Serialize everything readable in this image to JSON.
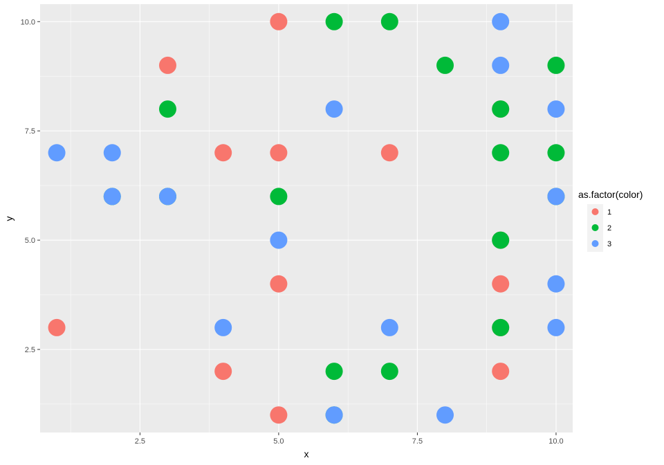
{
  "chart_data": {
    "type": "scatter",
    "xlabel": "x",
    "ylabel": "y",
    "xlim": [
      0.7,
      10.3
    ],
    "ylim": [
      0.6,
      10.4
    ],
    "x_major_ticks": [
      2.5,
      5.0,
      7.5,
      10.0
    ],
    "x_tick_labels": [
      "2.5",
      "5.0",
      "7.5",
      "10.0"
    ],
    "x_minor_ticks": [
      1.25,
      3.75,
      6.25,
      8.75
    ],
    "y_major_ticks": [
      2.5,
      5.0,
      7.5,
      10.0
    ],
    "y_tick_labels": [
      "2.5",
      "5.0",
      "7.5",
      "10.0"
    ],
    "y_minor_ticks": [
      1.25,
      3.75,
      6.25,
      8.75
    ],
    "grid": true,
    "colors": {
      "1": "#F8766D",
      "2": "#00BA38",
      "3": "#619CFF"
    },
    "panel_background": "#EBEBEB",
    "gridline_color": "#FFFFFF",
    "legend": {
      "title": "as.factor(color)",
      "placement": "right",
      "entries": [
        {
          "label": "1",
          "color": "#F8766D"
        },
        {
          "label": "2",
          "color": "#00BA38"
        },
        {
          "label": "3",
          "color": "#619CFF"
        }
      ]
    },
    "series": [
      {
        "name": "1",
        "color": "#F8766D",
        "points": [
          [
            1,
            3
          ],
          [
            3,
            9
          ],
          [
            4,
            2
          ],
          [
            4,
            7
          ],
          [
            5,
            1
          ],
          [
            5,
            4
          ],
          [
            5,
            7
          ],
          [
            5,
            10
          ],
          [
            7,
            7
          ],
          [
            9,
            2
          ],
          [
            9,
            3
          ],
          [
            9,
            4
          ],
          [
            9,
            5
          ],
          [
            9,
            8
          ]
        ]
      },
      {
        "name": "2",
        "color": "#00BA38",
        "points": [
          [
            2,
            6
          ],
          [
            3,
            6
          ],
          [
            3,
            8
          ],
          [
            5,
            6
          ],
          [
            6,
            1
          ],
          [
            6,
            2
          ],
          [
            6,
            10
          ],
          [
            7,
            2
          ],
          [
            7,
            10
          ],
          [
            8,
            9
          ],
          [
            9,
            3
          ],
          [
            9,
            5
          ],
          [
            9,
            7
          ],
          [
            9,
            8
          ],
          [
            10,
            6
          ],
          [
            10,
            7
          ],
          [
            10,
            9
          ]
        ]
      },
      {
        "name": "3",
        "color": "#619CFF",
        "points": [
          [
            1,
            7
          ],
          [
            2,
            6
          ],
          [
            2,
            7
          ],
          [
            3,
            6
          ],
          [
            4,
            3
          ],
          [
            5,
            5
          ],
          [
            6,
            1
          ],
          [
            6,
            8
          ],
          [
            7,
            3
          ],
          [
            8,
            1
          ],
          [
            9,
            9
          ],
          [
            9,
            10
          ],
          [
            10,
            3
          ],
          [
            10,
            4
          ],
          [
            10,
            6
          ],
          [
            10,
            8
          ]
        ]
      }
    ]
  }
}
